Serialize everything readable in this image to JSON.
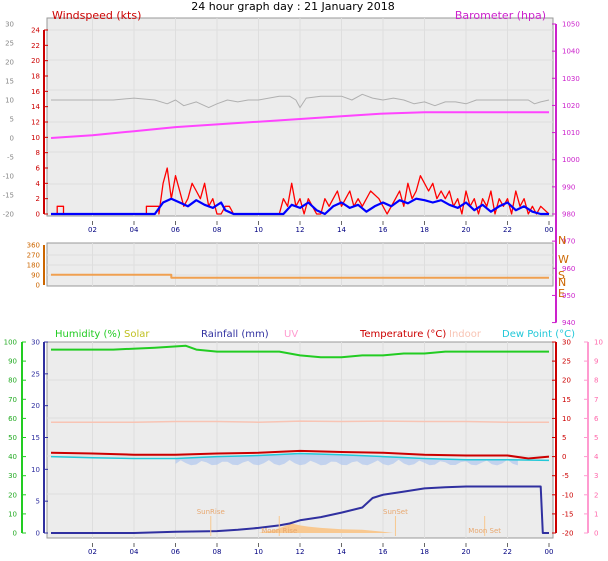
{
  "title": "24 hour graph day : 21 January 2018",
  "x_tick_labels": [
    "02",
    "04",
    "06",
    "08",
    "10",
    "12",
    "14",
    "16",
    "18",
    "20",
    "22",
    "00"
  ],
  "colors": {
    "panel_bg": "#ececec",
    "grid": "#dedede",
    "wind": "#ff0000",
    "wind_avg": "#0000ff",
    "wind_temp": "#b0b0b0",
    "barometer": "#ff44ff",
    "direction": "#f0a050",
    "humidity": "#22cc22",
    "solar": "#c0c020",
    "rainfall": "#3030a0",
    "uv": "#ff9bd0",
    "temperature": "#cc0000",
    "indoor": "#f8c4b4",
    "dew_point": "#22c8d8",
    "dew_band": "#b0c8f0",
    "solar_fill": "#f8c890"
  },
  "chart_data": [
    {
      "type": "line",
      "left_axis_label": "Windspeed (kts)",
      "right_axis_label": "Barometer (hpa)",
      "left_ticks": [
        24,
        22,
        20,
        18,
        16,
        14,
        12,
        10,
        8,
        6,
        4,
        2,
        0
      ],
      "outer_ticks": [
        30,
        25,
        20,
        15,
        10,
        5,
        0,
        -5,
        -10,
        -15,
        -20
      ],
      "right_ticks": [
        1050,
        1040,
        1030,
        1020,
        1010,
        1000,
        990,
        980,
        970,
        960,
        950,
        940
      ],
      "series": [
        {
          "name": "Windspeed",
          "color": "#ff0000",
          "x": [
            0,
            0.3,
            0.3,
            0.6,
            0.6,
            4.6,
            4.6,
            5.2,
            5.2,
            5.4,
            5.6,
            5.8,
            6,
            6.2,
            6.4,
            6.6,
            6.8,
            7,
            7.2,
            7.4,
            7.6,
            7.8,
            8,
            8.2,
            8.4,
            8.6,
            8.8,
            9,
            11,
            11.2,
            11.4,
            11.6,
            11.8,
            12,
            12.2,
            12.4,
            12.6,
            12.8,
            13,
            13.2,
            13.4,
            13.6,
            13.8,
            14,
            14.2,
            14.4,
            14.6,
            14.8,
            15,
            15.4,
            15.8,
            16.2,
            16.6,
            16.8,
            17,
            17.2,
            17.4,
            17.6,
            17.8,
            18,
            18.2,
            18.4,
            18.6,
            18.8,
            19,
            19.2,
            19.4,
            19.6,
            19.8,
            20,
            20.2,
            20.4,
            20.6,
            20.8,
            21,
            21.2,
            21.4,
            21.6,
            21.8,
            22,
            22.2,
            22.4,
            22.6,
            22.8,
            23,
            23.2,
            23.4,
            23.6,
            24
          ],
          "y": [
            0,
            0,
            1,
            1,
            0,
            0,
            1,
            1,
            0,
            4,
            6,
            2,
            5,
            3,
            1,
            2,
            4,
            3,
            2,
            4,
            1,
            2,
            0,
            0,
            1,
            1,
            0,
            0,
            0,
            2,
            1,
            4,
            1,
            2,
            0,
            2,
            1,
            0,
            0,
            2,
            1,
            2,
            3,
            1,
            2,
            3,
            1,
            2,
            1,
            3,
            2,
            0,
            2,
            3,
            1,
            4,
            2,
            3,
            5,
            4,
            3,
            4,
            2,
            3,
            2,
            3,
            1,
            2,
            0,
            3,
            1,
            2,
            0,
            2,
            1,
            3,
            0,
            2,
            1,
            2,
            0,
            3,
            1,
            2,
            0,
            1,
            0,
            1,
            0
          ]
        },
        {
          "name": "Wind average",
          "color": "#0000ff",
          "x": [
            0,
            5.0,
            5.4,
            5.8,
            6.2,
            6.6,
            7,
            7.4,
            7.8,
            8.2,
            8.4,
            8.8,
            11.2,
            11.6,
            12,
            12.4,
            12.8,
            13.2,
            13.6,
            14,
            14.4,
            14.8,
            15.2,
            15.6,
            16,
            16.4,
            16.8,
            17.2,
            17.6,
            18,
            18.4,
            18.8,
            19.2,
            19.6,
            20,
            20.4,
            20.8,
            21.2,
            21.6,
            22,
            22.4,
            22.8,
            23.2,
            23.6,
            24
          ],
          "y": [
            0,
            0,
            1.5,
            2,
            1.5,
            1,
            1.8,
            1.2,
            0.8,
            1.5,
            0.5,
            0,
            0,
            1.2,
            0.8,
            1.5,
            0.5,
            0,
            1,
            1.5,
            0.8,
            1.2,
            0.3,
            1,
            1.5,
            1,
            1.8,
            1.4,
            2,
            1.8,
            1.5,
            1.8,
            1.2,
            0.8,
            1.5,
            0.5,
            1.2,
            0.3,
            1,
            1.5,
            0.5,
            1,
            0.3,
            0,
            0
          ]
        },
        {
          "name": "Grey trace (outer scale)",
          "color": "#b0b0b0",
          "x": [
            0,
            3,
            4,
            5,
            5.6,
            6,
            6.4,
            7,
            7.6,
            8,
            8.5,
            9,
            9.5,
            10,
            10.5,
            11,
            11.5,
            11.8,
            12,
            12.3,
            13,
            14,
            14.5,
            15,
            15.5,
            16,
            16.5,
            17,
            17.5,
            18,
            18.5,
            19,
            19.5,
            20,
            20.5,
            21,
            22,
            23,
            23.3,
            23.6,
            24
          ],
          "y": [
            10,
            10,
            10.5,
            10,
            9,
            10,
            8.5,
            9.5,
            8,
            9,
            10,
            9.5,
            10,
            10,
            10.5,
            11,
            11,
            10,
            8,
            10.5,
            11,
            11,
            10,
            11.5,
            10.5,
            10,
            10.5,
            10,
            9,
            9.5,
            8.5,
            9.5,
            9.5,
            9,
            10,
            10,
            10,
            10,
            9,
            9.5,
            10
          ]
        },
        {
          "name": "Barometer",
          "color": "#ff44ff",
          "x": [
            0,
            2,
            4,
            6,
            8,
            10,
            12,
            14,
            16,
            18,
            20,
            22,
            24
          ],
          "y": [
            1008,
            1009,
            1010.5,
            1012,
            1013,
            1014,
            1015,
            1016,
            1017,
            1017.5,
            1017.5,
            1017.5,
            1017.5
          ]
        }
      ]
    },
    {
      "type": "line",
      "direction_ticks": [
        360,
        270,
        180,
        90,
        0
      ],
      "direction_labels": [
        "N",
        "W",
        "S",
        "E",
        "N"
      ],
      "series": [
        {
          "name": "Wind direction",
          "color": "#f0a050",
          "x": [
            0,
            5.8,
            5.8,
            24
          ],
          "y": [
            92,
            92,
            65,
            65
          ]
        }
      ]
    },
    {
      "type": "line",
      "legend": [
        "Humidity (%)",
        "Solar",
        "Rainfall (mm)",
        "UV",
        "Temperature (°C)",
        "Indoor",
        "Dew Point (°C)"
      ],
      "humidity_ticks": [
        100,
        90,
        80,
        70,
        60,
        50,
        40,
        30,
        20,
        10,
        0
      ],
      "rain_ticks": [
        30,
        25,
        20,
        15,
        10,
        5,
        0
      ],
      "temp_ticks": [
        30,
        25,
        20,
        15,
        10,
        5,
        0,
        -5,
        -10,
        -15,
        -20
      ],
      "uv_ticks": [
        10,
        9,
        8,
        7,
        6,
        5,
        4,
        3,
        2,
        1,
        0
      ],
      "annotations": [
        "SunRise",
        "SunSet",
        "Moon Rise",
        "Moon Set"
      ],
      "series": [
        {
          "name": "Humidity",
          "color": "#22cc22",
          "x": [
            0,
            3,
            5,
            6.5,
            7,
            8,
            9,
            10,
            11,
            12,
            13,
            14,
            15,
            16,
            17,
            18,
            19,
            20,
            21,
            22,
            23,
            24
          ],
          "y": [
            96,
            96,
            97,
            98,
            96,
            95,
            95,
            95,
            95,
            93,
            92,
            92,
            93,
            93,
            94,
            94,
            95,
            95,
            95,
            95,
            95,
            95
          ]
        },
        {
          "name": "Temperature",
          "color": "#cc0000",
          "x": [
            0,
            2,
            4,
            6,
            8,
            10,
            12,
            14,
            16,
            18,
            20,
            22,
            23,
            24
          ],
          "y": [
            1,
            0.8,
            0.5,
            0.5,
            0.8,
            1,
            1.5,
            1.2,
            1,
            0.5,
            0.3,
            0.3,
            -0.5,
            0
          ]
        },
        {
          "name": "Dew Point",
          "color": "#22c8d8",
          "x": [
            0,
            2,
            4,
            6,
            8,
            10,
            12,
            14,
            16,
            18,
            20,
            22,
            24
          ],
          "y": [
            0,
            -0.3,
            -0.5,
            -0.5,
            0,
            0.3,
            0.8,
            0.5,
            0,
            -0.5,
            -0.8,
            -0.8,
            -1
          ]
        },
        {
          "name": "Indoor",
          "color": "#f8c4b4",
          "x": [
            0,
            4,
            6,
            8,
            10,
            12,
            14,
            16,
            18,
            20,
            22,
            24
          ],
          "y": [
            9,
            9,
            9.2,
            9.2,
            9,
            9.3,
            9.2,
            9.3,
            9.2,
            9.2,
            9,
            9
          ]
        },
        {
          "name": "Rainfall",
          "color": "#3030a0",
          "x": [
            0,
            4,
            6,
            8,
            9,
            10,
            11,
            11.5,
            12,
            13,
            14,
            15,
            15.5,
            16,
            17,
            18,
            19,
            20,
            21,
            22,
            23,
            23.6,
            23.7,
            24
          ],
          "y": [
            0,
            0,
            0.2,
            0.3,
            0.5,
            0.8,
            1.2,
            1.5,
            2,
            2.5,
            3.2,
            4,
            5.5,
            6,
            6.5,
            7,
            7.2,
            7.3,
            7.3,
            7.3,
            7.3,
            7.3,
            0,
            0
          ]
        },
        {
          "name": "Solar",
          "color": "#f8c890",
          "x": [
            10,
            10.8,
            11.2,
            11.6,
            12,
            12.4,
            13,
            14,
            15,
            16,
            16.5
          ],
          "y": [
            0,
            0.5,
            1,
            1.5,
            1.2,
            1,
            0.8,
            0.6,
            0.5,
            0.2,
            0
          ]
        }
      ]
    }
  ]
}
